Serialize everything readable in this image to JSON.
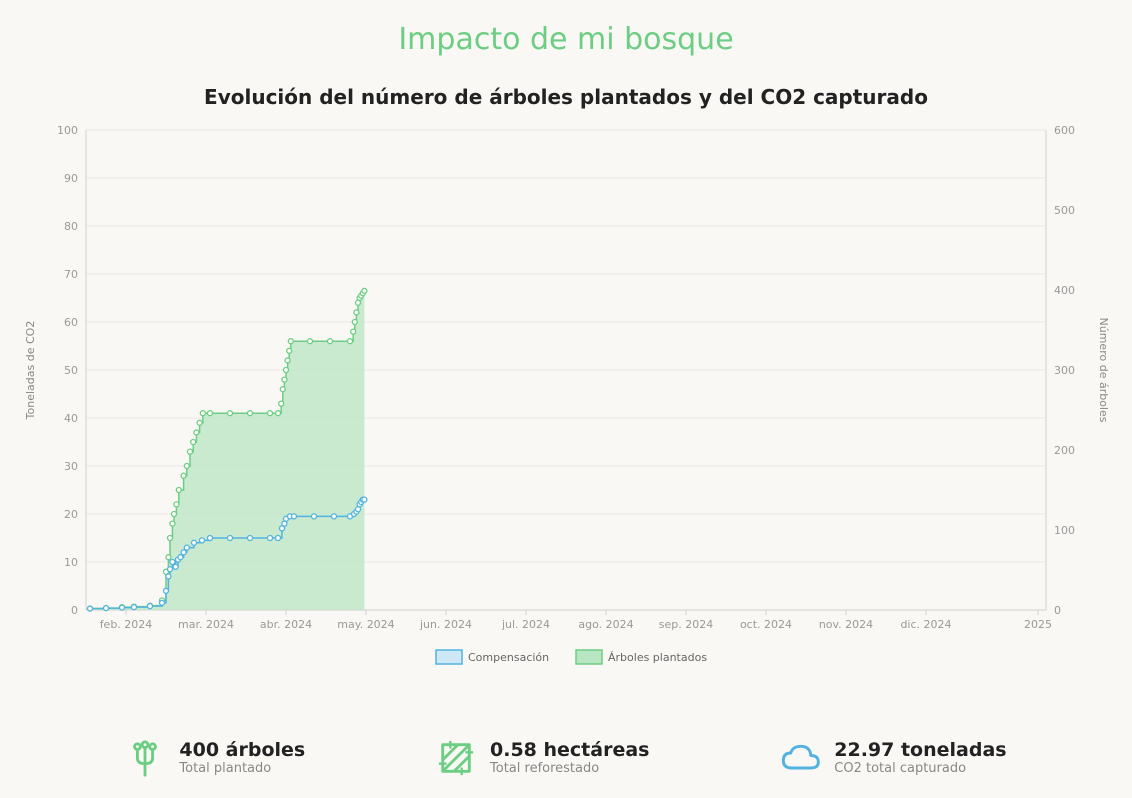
{
  "page": {
    "title": "Impacto de mi bosque",
    "chart_title": "Evolución del número de árboles plantados y del CO2 capturado"
  },
  "chart": {
    "type": "line+area-dual-axis",
    "background_color": "#faf8f5",
    "plot_background": "#faf8f5",
    "grid_color": "#e9e7e3",
    "axis_line_color": "#cfcfcf",
    "x_axis": {
      "min": 0,
      "max": 12,
      "ticks": [
        {
          "pos": 0.5,
          "label": "feb. 2024"
        },
        {
          "pos": 1.5,
          "label": "mar. 2024"
        },
        {
          "pos": 2.5,
          "label": "abr. 2024"
        },
        {
          "pos": 3.5,
          "label": "may. 2024"
        },
        {
          "pos": 4.5,
          "label": "jun. 2024"
        },
        {
          "pos": 5.5,
          "label": "jul. 2024"
        },
        {
          "pos": 6.5,
          "label": "ago. 2024"
        },
        {
          "pos": 7.5,
          "label": "sep. 2024"
        },
        {
          "pos": 8.5,
          "label": "oct. 2024"
        },
        {
          "pos": 9.5,
          "label": "nov. 2024"
        },
        {
          "pos": 10.5,
          "label": "dic. 2024"
        },
        {
          "pos": 11.9,
          "label": "2025"
        }
      ]
    },
    "y_left": {
      "title": "Toneladas de CO2",
      "min": 0,
      "max": 100,
      "step": 10
    },
    "y_right": {
      "title": "Número de árboles",
      "min": 0,
      "max": 600,
      "step": 100
    },
    "legend": [
      {
        "label": "Compensación",
        "type": "line",
        "stroke": "#53b3e0",
        "fill": "#cfe8f6"
      },
      {
        "label": "Árboles plantados",
        "type": "area",
        "stroke": "#6cce82",
        "fill": "#b8e6c2"
      }
    ],
    "series": {
      "compensacion": {
        "stroke": "#53b3e0",
        "marker": "circle",
        "marker_fill": "#ffffff",
        "marker_stroke": "#53b3e0",
        "line_width": 1.5,
        "points": [
          [
            0.05,
            0.3
          ],
          [
            0.25,
            0.4
          ],
          [
            0.45,
            0.5
          ],
          [
            0.6,
            0.6
          ],
          [
            0.8,
            0.8
          ],
          [
            0.95,
            1.5
          ],
          [
            1.0,
            4
          ],
          [
            1.03,
            7
          ],
          [
            1.05,
            8.5
          ],
          [
            1.08,
            10
          ],
          [
            1.12,
            9
          ],
          [
            1.15,
            10.5
          ],
          [
            1.18,
            11
          ],
          [
            1.22,
            12
          ],
          [
            1.26,
            13
          ],
          [
            1.35,
            14
          ],
          [
            1.45,
            14.5
          ],
          [
            1.55,
            15
          ],
          [
            1.8,
            15
          ],
          [
            2.05,
            15
          ],
          [
            2.3,
            15
          ],
          [
            2.4,
            15
          ],
          [
            2.45,
            17
          ],
          [
            2.48,
            18
          ],
          [
            2.5,
            19
          ],
          [
            2.55,
            19.5
          ],
          [
            2.6,
            19.5
          ],
          [
            2.85,
            19.5
          ],
          [
            3.1,
            19.5
          ],
          [
            3.3,
            19.5
          ],
          [
            3.35,
            20
          ],
          [
            3.38,
            20.5
          ],
          [
            3.4,
            21
          ],
          [
            3.42,
            22
          ],
          [
            3.44,
            22.5
          ],
          [
            3.46,
            23
          ],
          [
            3.48,
            23
          ]
        ]
      },
      "arboles": {
        "stroke": "#6cce82",
        "fill": "#b8e6c2",
        "marker": "circle",
        "marker_fill": "#ffffff",
        "marker_stroke": "#6cce82",
        "line_width": 1.5,
        "points": [
          [
            0.05,
            0.3
          ],
          [
            0.25,
            0.4
          ],
          [
            0.45,
            0.6
          ],
          [
            0.6,
            0.7
          ],
          [
            0.8,
            0.9
          ],
          [
            0.95,
            2
          ],
          [
            1.0,
            8
          ],
          [
            1.03,
            11
          ],
          [
            1.05,
            15
          ],
          [
            1.08,
            18
          ],
          [
            1.1,
            20
          ],
          [
            1.13,
            22
          ],
          [
            1.16,
            25
          ],
          [
            1.22,
            28
          ],
          [
            1.26,
            30
          ],
          [
            1.3,
            33
          ],
          [
            1.34,
            35
          ],
          [
            1.38,
            37
          ],
          [
            1.42,
            39
          ],
          [
            1.46,
            41
          ],
          [
            1.55,
            41
          ],
          [
            1.8,
            41
          ],
          [
            2.05,
            41
          ],
          [
            2.3,
            41
          ],
          [
            2.4,
            41
          ],
          [
            2.44,
            43
          ],
          [
            2.46,
            46
          ],
          [
            2.48,
            48
          ],
          [
            2.5,
            50
          ],
          [
            2.52,
            52
          ],
          [
            2.54,
            54
          ],
          [
            2.56,
            56
          ],
          [
            2.8,
            56
          ],
          [
            3.05,
            56
          ],
          [
            3.3,
            56
          ],
          [
            3.34,
            58
          ],
          [
            3.36,
            60
          ],
          [
            3.38,
            62
          ],
          [
            3.4,
            64
          ],
          [
            3.42,
            65
          ],
          [
            3.44,
            65.5
          ],
          [
            3.46,
            66
          ],
          [
            3.48,
            66.5
          ]
        ]
      }
    }
  },
  "stats": [
    {
      "icon": "tree",
      "value": "400 árboles",
      "sub": "Total plantado",
      "color": "#6cce82"
    },
    {
      "icon": "area",
      "value": "0.58 hectáreas",
      "sub": "Total reforestado",
      "color": "#6cce82"
    },
    {
      "icon": "cloud",
      "value": "22.97 toneladas",
      "sub": "CO2 total capturado",
      "color": "#53b3e0"
    }
  ]
}
